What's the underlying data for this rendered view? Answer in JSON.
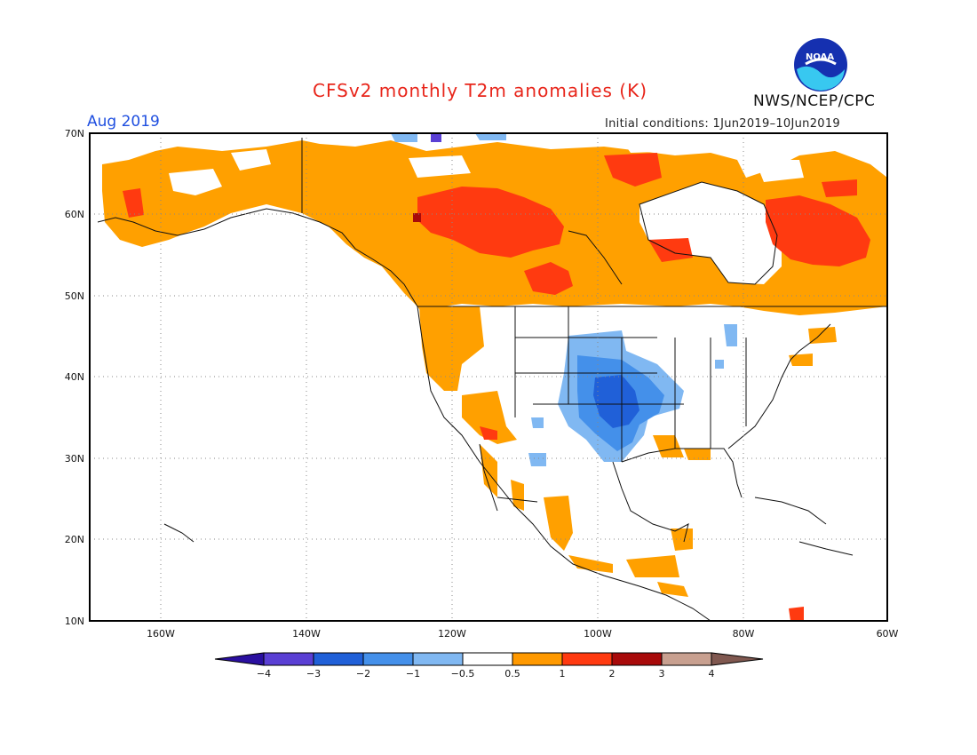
{
  "title": "CFSv2 monthly T2m anomalies (K)",
  "month": "Aug 2019",
  "initial_conditions": "Initial conditions: 1Jun2019–10Jun2019",
  "org": "NWS/NCEP/CPC",
  "logo_text": "NOAA",
  "map": {
    "lon_range": [
      -172,
      -60
    ],
    "lat_range": [
      10,
      70
    ],
    "lat_labels": [
      "70N",
      "60N",
      "50N",
      "40N",
      "30N",
      "20N",
      "10N"
    ],
    "lon_labels": [
      "160W",
      "140W",
      "120W",
      "100W",
      "80W",
      "60W"
    ],
    "grid": true
  },
  "colorbar": {
    "labels": [
      "−4",
      "−3",
      "−2",
      "−1",
      "−0.5",
      "0.5",
      "1",
      "2",
      "3",
      "4"
    ],
    "colors": [
      "#2a0fa0",
      "#5a3fd4",
      "#2060d8",
      "#4490ea",
      "#80b8f2",
      "#ffffff",
      "#ff9900",
      "#ff3a10",
      "#a80a0a",
      "#c8a090",
      "#805850"
    ]
  },
  "colors": {
    "warm_light": "#ffa000",
    "warm_mid": "#ff3a10",
    "warm_dark": "#a80a0a",
    "cool_light": "#80b8f2",
    "cool_mid": "#4490ea",
    "cool_dark": "#2060d8"
  }
}
